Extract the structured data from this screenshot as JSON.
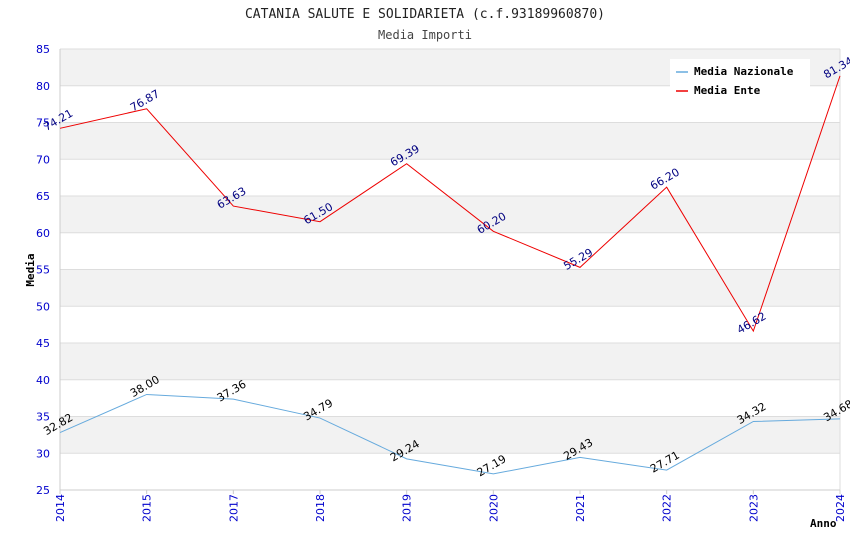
{
  "chart_data": {
    "type": "line",
    "title": "CATANIA SALUTE E SOLIDARIETA (c.f.93189960870)",
    "subtitle": "Media Importi",
    "xlabel": "Anno",
    "ylabel": "Media",
    "categories": [
      "2014",
      "2015",
      "2017",
      "2018",
      "2019",
      "2020",
      "2021",
      "2022",
      "2023",
      "2024"
    ],
    "ylim": [
      25,
      85
    ],
    "yticks": [
      25,
      30,
      35,
      40,
      45,
      50,
      55,
      60,
      65,
      70,
      75,
      80,
      85
    ],
    "legend_position": "top-right",
    "series": [
      {
        "name": "Media Nazionale",
        "color": "#66aadd",
        "values": [
          32.82,
          38.0,
          37.36,
          34.79,
          29.24,
          27.19,
          29.43,
          27.71,
          34.32,
          34.68
        ],
        "labels": [
          "32.82",
          "38.00",
          "37.36",
          "34.79",
          "29.24",
          "27.19",
          "29.43",
          "27.71",
          "34.32",
          "34.68"
        ]
      },
      {
        "name": "Media Ente",
        "color": "#ee0000",
        "values": [
          74.21,
          76.87,
          63.63,
          61.5,
          69.39,
          60.2,
          55.29,
          66.2,
          46.62,
          81.34
        ],
        "labels": [
          "74.21",
          "76.87",
          "63.63",
          "61.50",
          "69.39",
          "60.20",
          "55.29",
          "66.20",
          "46.62",
          "81.34"
        ]
      }
    ]
  }
}
